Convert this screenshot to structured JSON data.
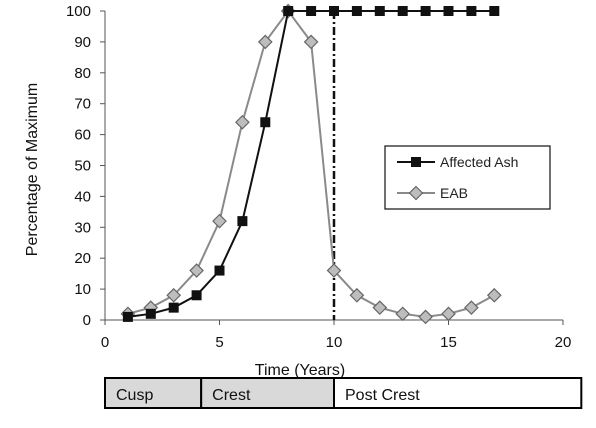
{
  "chart_data": {
    "type": "line",
    "xlabel": "Time (Years)",
    "ylabel": "Percentage of Maximum",
    "xlim": [
      0,
      20
    ],
    "ylim": [
      0,
      100
    ],
    "x_ticks": [
      0,
      5,
      10,
      15,
      20
    ],
    "y_ticks": [
      0,
      10,
      20,
      30,
      40,
      50,
      60,
      70,
      80,
      90,
      100
    ],
    "grid": false,
    "legend_position": "right",
    "vline": {
      "x": 10,
      "style": "dash-dot"
    },
    "series": [
      {
        "name": "Affected Ash",
        "marker": "square",
        "color": "#111111",
        "marker_fill": "#111111",
        "x": [
          1,
          2,
          3,
          4,
          5,
          6,
          7,
          8,
          9,
          10,
          11,
          12,
          13,
          14,
          15,
          16,
          17
        ],
        "y": [
          1,
          2,
          4,
          8,
          16,
          32,
          64,
          100,
          100,
          100,
          100,
          100,
          100,
          100,
          100,
          100,
          100
        ]
      },
      {
        "name": "EAB",
        "marker": "diamond",
        "color": "#8a8a8a",
        "marker_fill": "#bdbdbd",
        "x": [
          1,
          2,
          3,
          4,
          5,
          6,
          7,
          8,
          9,
          10,
          11,
          12,
          13,
          14,
          15,
          16,
          17
        ],
        "y": [
          2,
          4,
          8,
          16,
          32,
          64,
          90,
          100,
          90,
          16,
          8,
          4,
          2,
          1,
          2,
          4,
          8
        ]
      }
    ],
    "phase_bar": [
      {
        "label": "Cusp",
        "from": 0,
        "to": 4.2,
        "fill": "#d9d9d9"
      },
      {
        "label": "Crest",
        "from": 4.2,
        "to": 10,
        "fill": "#d9d9d9"
      },
      {
        "label": "Post Crest",
        "from": 10,
        "to": 20.8,
        "fill": "#ffffff"
      }
    ]
  }
}
